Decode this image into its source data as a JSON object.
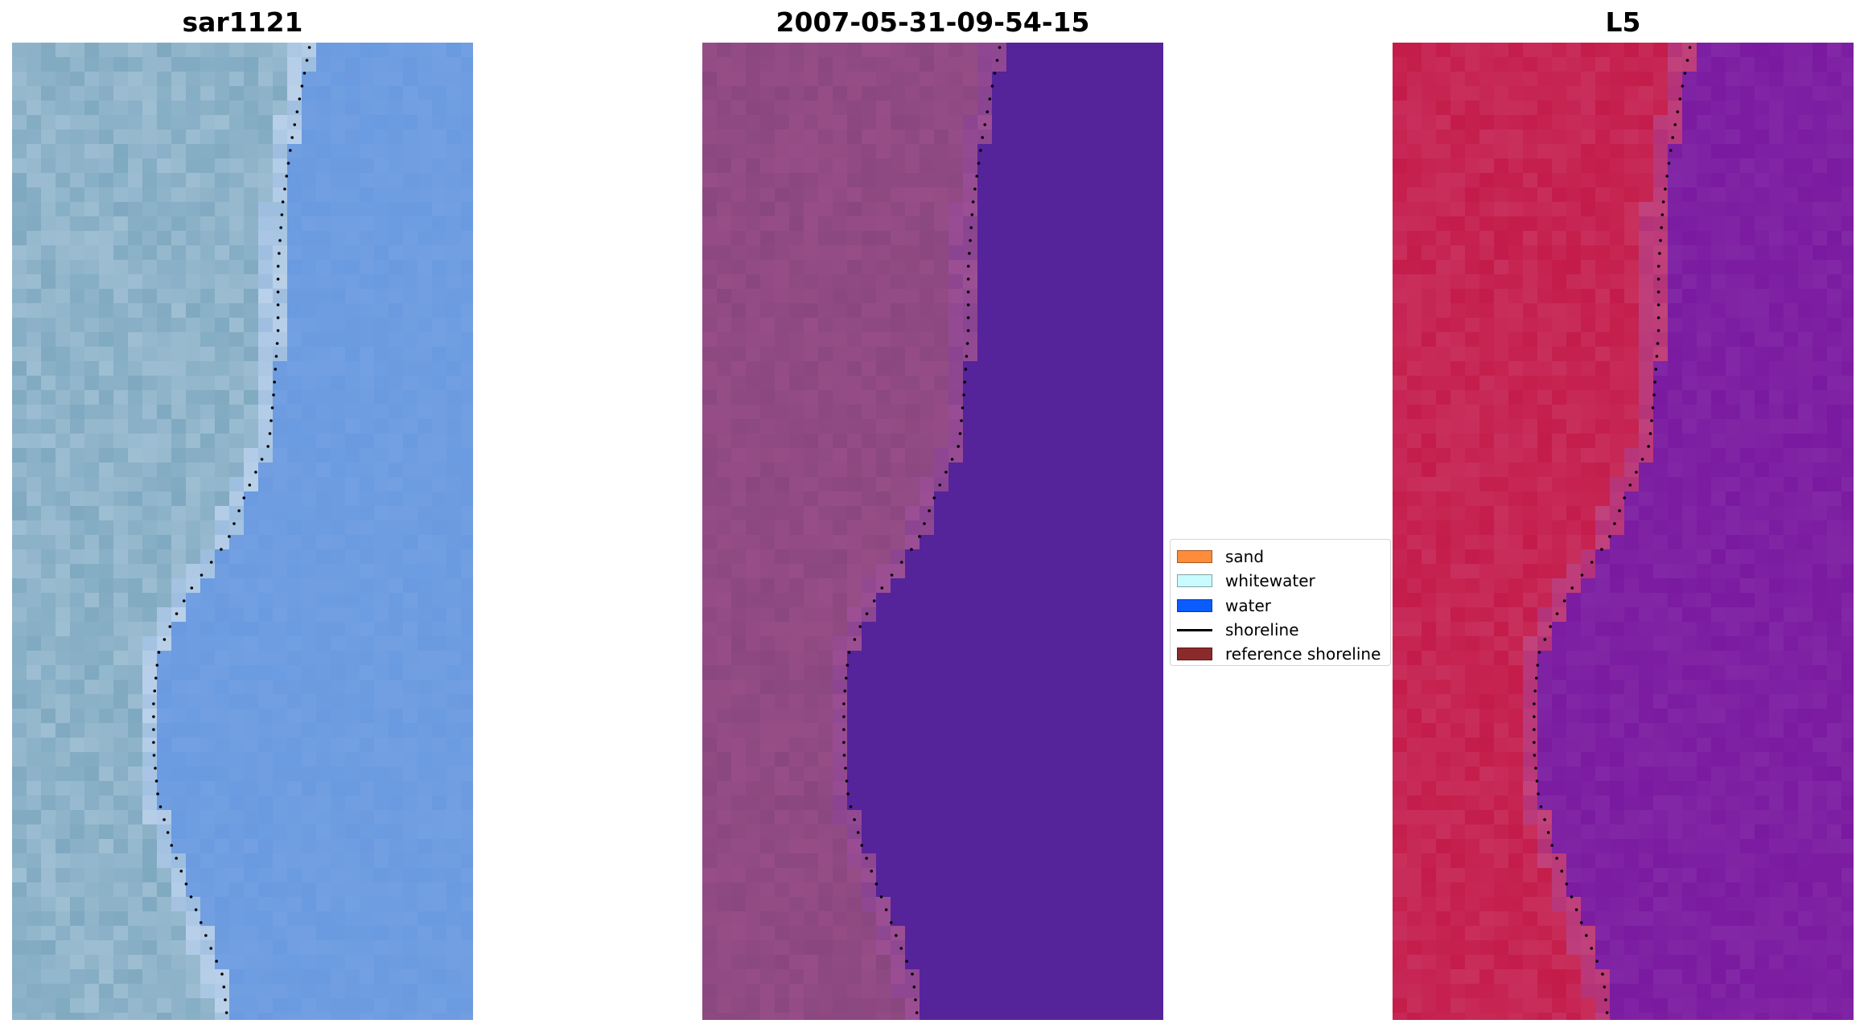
{
  "panels": [
    {
      "title": "sar1121",
      "kind": "rgb"
    },
    {
      "title": "2007-05-31-09-54-15",
      "kind": "classified"
    },
    {
      "title": "L5",
      "kind": "index"
    }
  ],
  "legend": {
    "items": [
      {
        "label": "sand",
        "color": "#ff8c3a",
        "style": "patch"
      },
      {
        "label": "whitewater",
        "color": "#c8fbff",
        "style": "patch"
      },
      {
        "label": "water",
        "color": "#0a5cff",
        "style": "patch"
      },
      {
        "label": "shoreline",
        "color": "#000000",
        "style": "line"
      },
      {
        "label": "reference shoreline",
        "color": "#8b2a2a",
        "style": "patch"
      }
    ]
  },
  "colors": {
    "rgb_land": "#7fa9c0",
    "rgb_water": "#6a9ae0",
    "rgb_whitewater": "#d9e6f5",
    "classified_land": "#8a477f",
    "classified_water": "#55239a",
    "index_land": "#c41c4a",
    "index_water": "#7a1aa0"
  }
}
